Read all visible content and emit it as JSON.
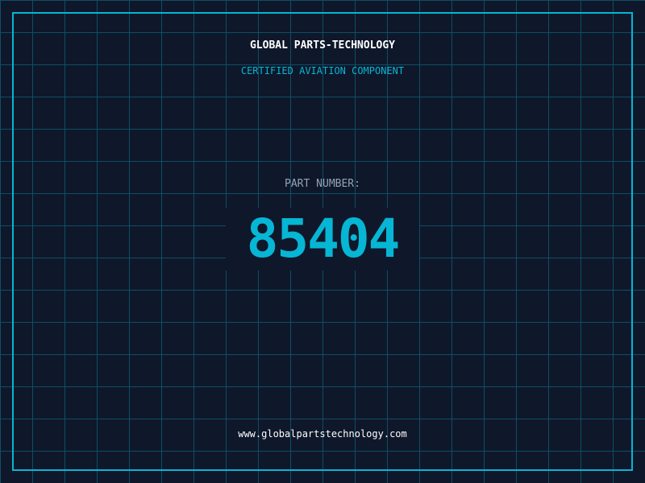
{
  "header": {
    "company": "GLOBAL PARTS-TECHNOLOGY",
    "subtitle": "CERTIFIED AVIATION COMPONENT"
  },
  "part": {
    "label": "PART NUMBER:",
    "number": "85404"
  },
  "footer": {
    "url": "www.globalpartstechnology.com"
  },
  "colors": {
    "accent": "#06b6d4",
    "background": "#0f172a",
    "grid": "#0e4f63"
  }
}
